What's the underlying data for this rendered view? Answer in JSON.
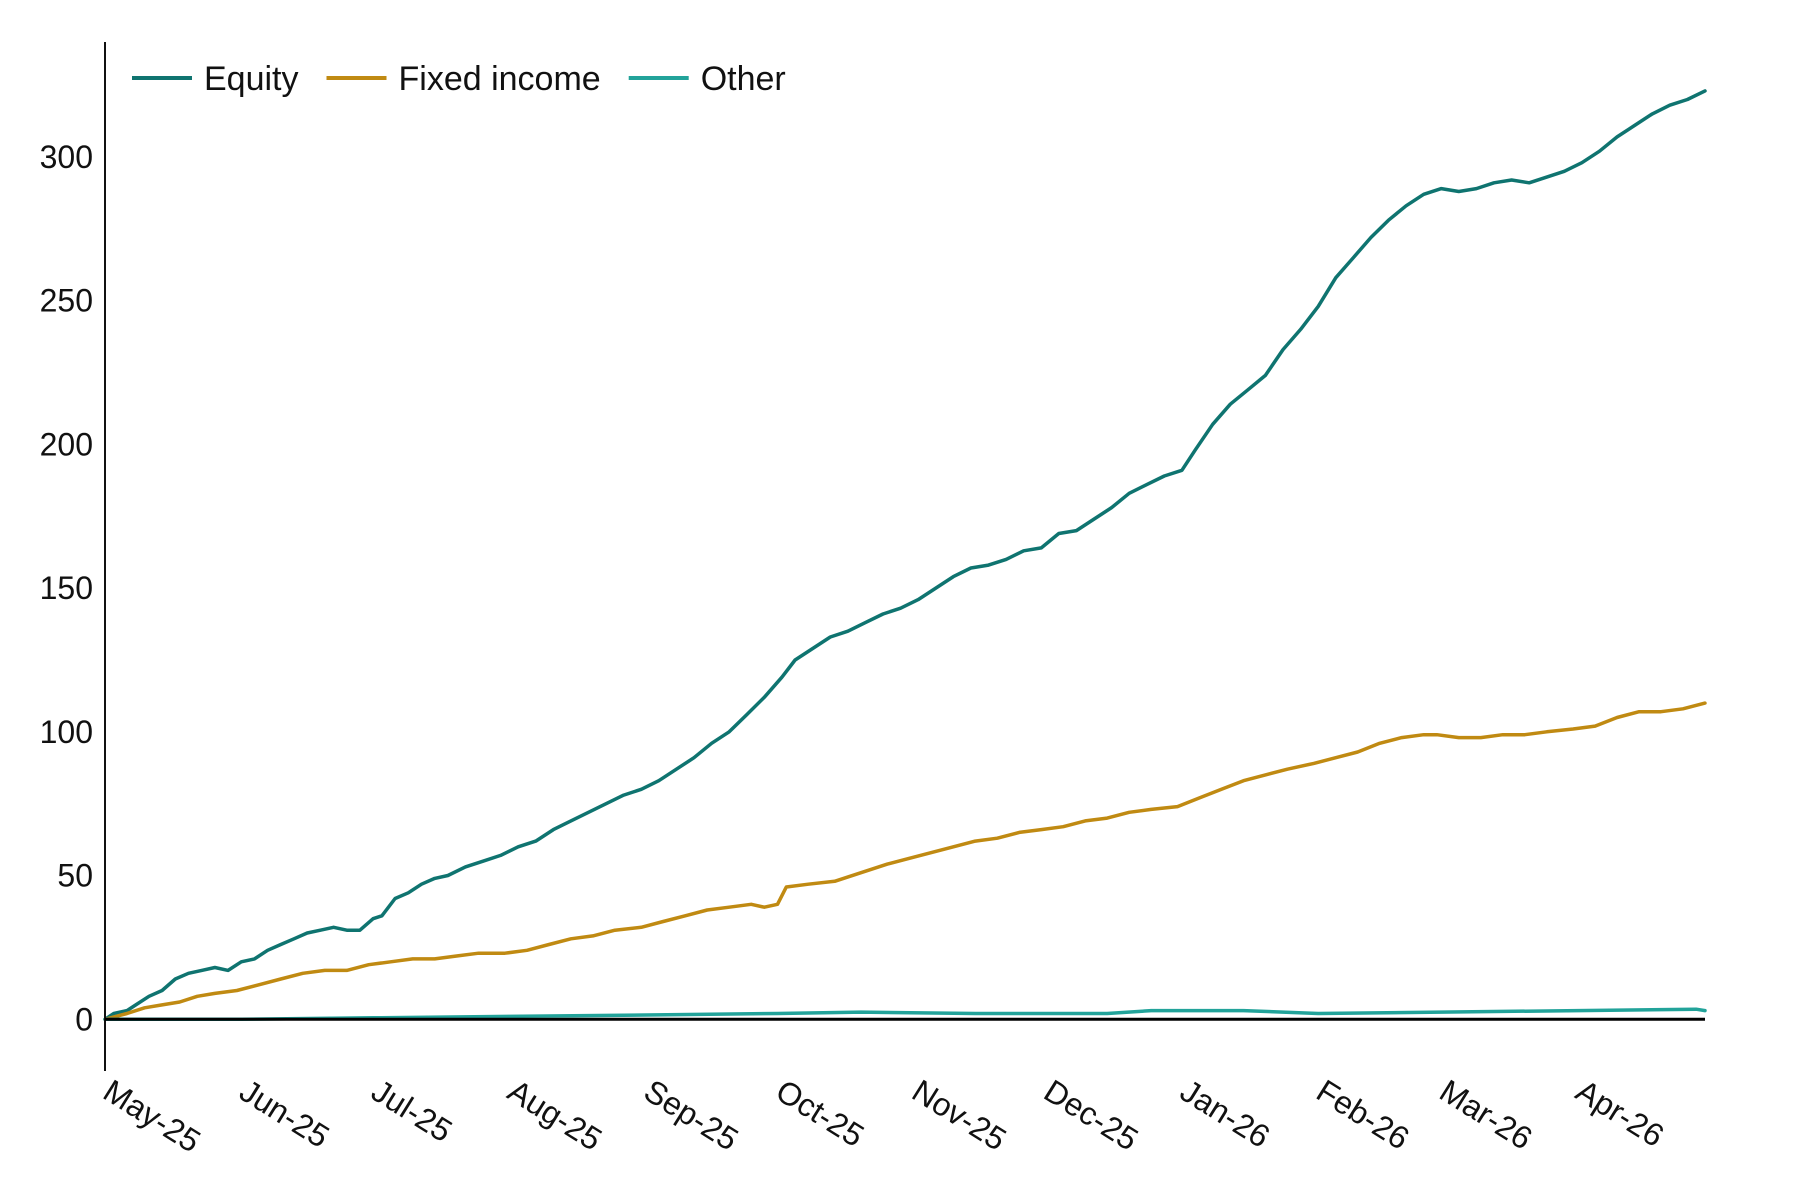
{
  "chart_data": {
    "type": "line",
    "title": "",
    "xlabel": "",
    "ylabel": "",
    "ylim": [
      -18,
      340
    ],
    "yticks": [
      0,
      50,
      100,
      150,
      200,
      250,
      300
    ],
    "xticks": [
      "May-25",
      "Jun-25",
      "Jul-25",
      "Aug-25",
      "Sep-25",
      "Oct-25",
      "Nov-25",
      "Dec-25",
      "Jan-26",
      "Feb-26",
      "Mar-26",
      "Apr-26"
    ],
    "x_date_range": [
      "2025-05-01",
      "2026-04-30"
    ],
    "grid": false,
    "legend_position": "top-left",
    "series": [
      {
        "name": "Equity",
        "color": "#0f7470",
        "points": [
          [
            "2025-05-01",
            0
          ],
          [
            "2025-05-03",
            2
          ],
          [
            "2025-05-06",
            3
          ],
          [
            "2025-05-08",
            5
          ],
          [
            "2025-05-11",
            8
          ],
          [
            "2025-05-14",
            10
          ],
          [
            "2025-05-17",
            14
          ],
          [
            "2025-05-20",
            16
          ],
          [
            "2025-05-23",
            17
          ],
          [
            "2025-05-26",
            18
          ],
          [
            "2025-05-29",
            17
          ],
          [
            "2025-06-01",
            20
          ],
          [
            "2025-06-04",
            21
          ],
          [
            "2025-06-07",
            24
          ],
          [
            "2025-06-10",
            26
          ],
          [
            "2025-06-13",
            28
          ],
          [
            "2025-06-16",
            30
          ],
          [
            "2025-06-19",
            31
          ],
          [
            "2025-06-22",
            32
          ],
          [
            "2025-06-25",
            31
          ],
          [
            "2025-06-28",
            31
          ],
          [
            "2025-07-01",
            35
          ],
          [
            "2025-07-03",
            36
          ],
          [
            "2025-07-06",
            42
          ],
          [
            "2025-07-09",
            44
          ],
          [
            "2025-07-12",
            47
          ],
          [
            "2025-07-15",
            49
          ],
          [
            "2025-07-18",
            50
          ],
          [
            "2025-07-22",
            53
          ],
          [
            "2025-07-26",
            55
          ],
          [
            "2025-07-30",
            57
          ],
          [
            "2025-08-03",
            60
          ],
          [
            "2025-08-07",
            62
          ],
          [
            "2025-08-11",
            66
          ],
          [
            "2025-08-15",
            69
          ],
          [
            "2025-08-19",
            72
          ],
          [
            "2025-08-23",
            75
          ],
          [
            "2025-08-27",
            78
          ],
          [
            "2025-08-31",
            80
          ],
          [
            "2025-09-04",
            83
          ],
          [
            "2025-09-08",
            87
          ],
          [
            "2025-09-12",
            91
          ],
          [
            "2025-09-16",
            96
          ],
          [
            "2025-09-20",
            100
          ],
          [
            "2025-09-24",
            106
          ],
          [
            "2025-09-28",
            112
          ],
          [
            "2025-10-02",
            119
          ],
          [
            "2025-10-05",
            125
          ],
          [
            "2025-10-09",
            129
          ],
          [
            "2025-10-13",
            133
          ],
          [
            "2025-10-17",
            135
          ],
          [
            "2025-10-21",
            138
          ],
          [
            "2025-10-25",
            141
          ],
          [
            "2025-10-29",
            143
          ],
          [
            "2025-11-02",
            146
          ],
          [
            "2025-11-06",
            150
          ],
          [
            "2025-11-10",
            154
          ],
          [
            "2025-11-14",
            157
          ],
          [
            "2025-11-18",
            158
          ],
          [
            "2025-11-22",
            160
          ],
          [
            "2025-11-26",
            163
          ],
          [
            "2025-11-30",
            164
          ],
          [
            "2025-12-04",
            169
          ],
          [
            "2025-12-08",
            170
          ],
          [
            "2025-12-12",
            174
          ],
          [
            "2025-12-16",
            178
          ],
          [
            "2025-12-20",
            183
          ],
          [
            "2025-12-24",
            186
          ],
          [
            "2025-12-28",
            189
          ],
          [
            "2026-01-01",
            191
          ],
          [
            "2026-01-04",
            198
          ],
          [
            "2026-01-08",
            207
          ],
          [
            "2026-01-12",
            214
          ],
          [
            "2026-01-16",
            219
          ],
          [
            "2026-01-20",
            224
          ],
          [
            "2026-01-24",
            233
          ],
          [
            "2026-01-28",
            240
          ],
          [
            "2026-02-01",
            248
          ],
          [
            "2026-02-05",
            258
          ],
          [
            "2026-02-09",
            265
          ],
          [
            "2026-02-13",
            272
          ],
          [
            "2026-02-17",
            278
          ],
          [
            "2026-02-21",
            283
          ],
          [
            "2026-02-25",
            287
          ],
          [
            "2026-03-01",
            289
          ],
          [
            "2026-03-05",
            288
          ],
          [
            "2026-03-09",
            289
          ],
          [
            "2026-03-13",
            291
          ],
          [
            "2026-03-17",
            292
          ],
          [
            "2026-03-21",
            291
          ],
          [
            "2026-03-25",
            293
          ],
          [
            "2026-03-29",
            295
          ],
          [
            "2026-04-02",
            298
          ],
          [
            "2026-04-06",
            302
          ],
          [
            "2026-04-10",
            307
          ],
          [
            "2026-04-14",
            311
          ],
          [
            "2026-04-18",
            315
          ],
          [
            "2026-04-22",
            318
          ],
          [
            "2026-04-26",
            320
          ],
          [
            "2026-04-30",
            323
          ]
        ]
      },
      {
        "name": "Fixed income",
        "color": "#c08a12",
        "points": [
          [
            "2025-05-01",
            0
          ],
          [
            "2025-05-06",
            2
          ],
          [
            "2025-05-10",
            4
          ],
          [
            "2025-05-14",
            5
          ],
          [
            "2025-05-18",
            6
          ],
          [
            "2025-05-22",
            8
          ],
          [
            "2025-05-26",
            9
          ],
          [
            "2025-05-31",
            10
          ],
          [
            "2025-06-05",
            12
          ],
          [
            "2025-06-10",
            14
          ],
          [
            "2025-06-15",
            16
          ],
          [
            "2025-06-20",
            17
          ],
          [
            "2025-06-25",
            17
          ],
          [
            "2025-06-30",
            19
          ],
          [
            "2025-07-05",
            20
          ],
          [
            "2025-07-10",
            21
          ],
          [
            "2025-07-15",
            21
          ],
          [
            "2025-07-20",
            22
          ],
          [
            "2025-07-25",
            23
          ],
          [
            "2025-07-31",
            23
          ],
          [
            "2025-08-05",
            24
          ],
          [
            "2025-08-10",
            26
          ],
          [
            "2025-08-15",
            28
          ],
          [
            "2025-08-20",
            29
          ],
          [
            "2025-08-25",
            31
          ],
          [
            "2025-08-31",
            32
          ],
          [
            "2025-09-05",
            34
          ],
          [
            "2025-09-10",
            36
          ],
          [
            "2025-09-15",
            38
          ],
          [
            "2025-09-20",
            39
          ],
          [
            "2025-09-25",
            40
          ],
          [
            "2025-09-28",
            39
          ],
          [
            "2025-10-01",
            40
          ],
          [
            "2025-10-03",
            46
          ],
          [
            "2025-10-08",
            47
          ],
          [
            "2025-10-14",
            48
          ],
          [
            "2025-10-20",
            51
          ],
          [
            "2025-10-26",
            54
          ],
          [
            "2025-10-31",
            56
          ],
          [
            "2025-11-05",
            58
          ],
          [
            "2025-11-10",
            60
          ],
          [
            "2025-11-15",
            62
          ],
          [
            "2025-11-20",
            63
          ],
          [
            "2025-11-25",
            65
          ],
          [
            "2025-11-30",
            66
          ],
          [
            "2025-12-05",
            67
          ],
          [
            "2025-12-10",
            69
          ],
          [
            "2025-12-15",
            70
          ],
          [
            "2025-12-20",
            72
          ],
          [
            "2025-12-25",
            73
          ],
          [
            "2025-12-31",
            74
          ],
          [
            "2026-01-05",
            77
          ],
          [
            "2026-01-10",
            80
          ],
          [
            "2026-01-15",
            83
          ],
          [
            "2026-01-20",
            85
          ],
          [
            "2026-01-25",
            87
          ],
          [
            "2026-01-31",
            89
          ],
          [
            "2026-02-05",
            91
          ],
          [
            "2026-02-10",
            93
          ],
          [
            "2026-02-15",
            96
          ],
          [
            "2026-02-20",
            98
          ],
          [
            "2026-02-25",
            99
          ],
          [
            "2026-02-28",
            99
          ],
          [
            "2026-03-05",
            98
          ],
          [
            "2026-03-10",
            98
          ],
          [
            "2026-03-15",
            99
          ],
          [
            "2026-03-20",
            99
          ],
          [
            "2026-03-25",
            100
          ],
          [
            "2026-03-31",
            101
          ],
          [
            "2026-04-05",
            102
          ],
          [
            "2026-04-10",
            105
          ],
          [
            "2026-04-15",
            107
          ],
          [
            "2026-04-20",
            107
          ],
          [
            "2026-04-25",
            108
          ],
          [
            "2026-04-30",
            110
          ]
        ]
      },
      {
        "name": "Other",
        "color": "#22a39a",
        "points": [
          [
            "2025-05-01",
            0
          ],
          [
            "2025-06-01",
            0
          ],
          [
            "2025-07-01",
            0.5
          ],
          [
            "2025-08-01",
            1
          ],
          [
            "2025-09-01",
            1.5
          ],
          [
            "2025-10-01",
            2
          ],
          [
            "2025-10-20",
            2.5
          ],
          [
            "2025-11-15",
            2
          ],
          [
            "2025-12-15",
            2
          ],
          [
            "2025-12-25",
            3
          ],
          [
            "2026-01-15",
            3
          ],
          [
            "2026-02-01",
            2
          ],
          [
            "2026-03-01",
            2.5
          ],
          [
            "2026-04-01",
            3
          ],
          [
            "2026-04-28",
            3.5
          ],
          [
            "2026-04-30",
            3
          ]
        ]
      }
    ]
  }
}
